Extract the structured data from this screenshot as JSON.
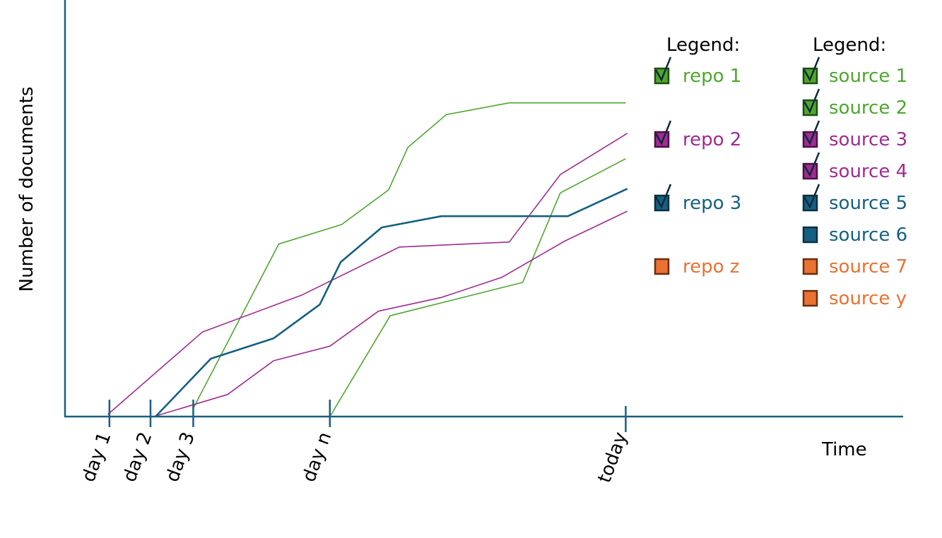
{
  "chart_data": {
    "type": "line",
    "title": "",
    "xlabel": "Time",
    "ylabel": "Number of documents",
    "xlim": [
      0,
      100
    ],
    "ylim": [
      0,
      100
    ],
    "grid": false,
    "axis_color": "#1a5e80",
    "x_ticks": [
      {
        "x": 5.3,
        "label": "day 1"
      },
      {
        "x": 10.2,
        "label": "day 2"
      },
      {
        "x": 15.3,
        "label": "day 3"
      },
      {
        "x": 31.6,
        "label": "day n"
      },
      {
        "x": 66.9,
        "label": "today"
      }
    ],
    "series": [
      {
        "color": "#4ea72e",
        "width": 1.6,
        "points": [
          [
            15.3,
            2.0
          ],
          [
            25.5,
            41.4
          ],
          [
            33.0,
            46.1
          ],
          [
            38.6,
            54.4
          ],
          [
            40.9,
            64.6
          ],
          [
            45.5,
            72.5
          ],
          [
            53.0,
            75.3
          ],
          [
            66.9,
            75.3
          ]
        ]
      },
      {
        "color": "#4ea72e",
        "width": 1.6,
        "points": [
          [
            31.6,
            0
          ],
          [
            38.8,
            24.2
          ],
          [
            54.6,
            32.2
          ],
          [
            59.1,
            53.7
          ],
          [
            66.9,
            61.9
          ]
        ]
      },
      {
        "color": "#a02b93",
        "width": 1.6,
        "points": [
          [
            5.1,
            0.5
          ],
          [
            16.4,
            20.3
          ],
          [
            28.3,
            29.2
          ],
          [
            39.9,
            40.7
          ],
          [
            53.0,
            41.9
          ],
          [
            59.1,
            58.1
          ],
          [
            67.1,
            68.0
          ]
        ]
      },
      {
        "color": "#a02b93",
        "width": 1.6,
        "points": [
          [
            10.6,
            0
          ],
          [
            19.4,
            5.3
          ],
          [
            24.9,
            13.4
          ],
          [
            31.6,
            16.9
          ],
          [
            37.4,
            25.3
          ],
          [
            44.9,
            28.6
          ],
          [
            52.1,
            33.4
          ],
          [
            59.7,
            42.2
          ],
          [
            67.1,
            49.3
          ]
        ]
      },
      {
        "color": "#156082",
        "width": 2.6,
        "points": [
          [
            10.8,
            0
          ],
          [
            17.4,
            13.9
          ],
          [
            24.9,
            18.8
          ],
          [
            30.4,
            26.9
          ],
          [
            32.9,
            37.1
          ],
          [
            37.8,
            45.4
          ],
          [
            44.9,
            48.1
          ],
          [
            60.0,
            48.1
          ],
          [
            67.1,
            54.7
          ]
        ]
      }
    ],
    "legends": [
      {
        "title": "Legend:",
        "items": [
          {
            "label": "repo 1",
            "color": "#4ea72e",
            "border": "#1f4a12",
            "checked": true
          },
          {
            "label": "repo 2",
            "color": "#a02b93",
            "border": "#4a0f44",
            "checked": true
          },
          {
            "label": "repo 3",
            "color": "#156082",
            "border": "#0b2f40",
            "checked": true
          },
          {
            "label": "repo z",
            "color": "#e97132",
            "border": "#6b2d0c",
            "checked": false
          }
        ]
      },
      {
        "title": "Legend:",
        "items": [
          {
            "label": "source 1",
            "color": "#4ea72e",
            "border": "#1f4a12",
            "checked": true
          },
          {
            "label": "source 2",
            "color": "#4ea72e",
            "border": "#1f4a12",
            "checked": true
          },
          {
            "label": "source 3",
            "color": "#a02b93",
            "border": "#4a0f44",
            "checked": true
          },
          {
            "label": "source 4",
            "color": "#a02b93",
            "border": "#4a0f44",
            "checked": true
          },
          {
            "label": "source 5",
            "color": "#156082",
            "border": "#0b2f40",
            "checked": true
          },
          {
            "label": "source 6",
            "color": "#156082",
            "border": "#0b2f40",
            "checked": false
          },
          {
            "label": "source 7",
            "color": "#e97132",
            "border": "#6b2d0c",
            "checked": false
          },
          {
            "label": "source y",
            "color": "#e97132",
            "border": "#6b2d0c",
            "checked": false
          }
        ]
      }
    ]
  }
}
